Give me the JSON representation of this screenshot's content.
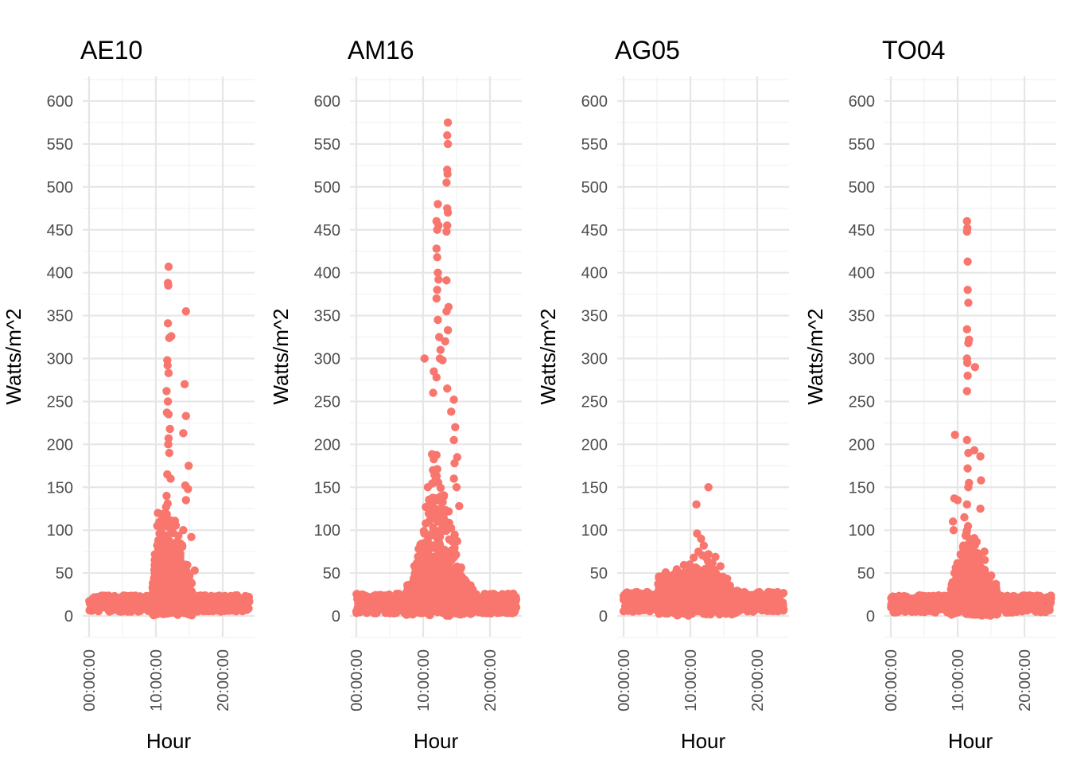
{
  "chart_data": {
    "type": "scatter",
    "layout": "facets-1x4",
    "point_color": "#F8766D",
    "x_axis": {
      "label": "Hour",
      "range_hours": [
        0,
        24
      ],
      "ticks": [
        {
          "value": 0,
          "label": "00:00:00"
        },
        {
          "value": 10,
          "label": "10:00:00"
        },
        {
          "value": 20,
          "label": "20:00:00"
        }
      ]
    },
    "y_axis": {
      "label": "Watts/m^2",
      "range": [
        -30,
        630
      ],
      "ticks": [
        0,
        50,
        100,
        150,
        200,
        250,
        300,
        350,
        400,
        450,
        500,
        550,
        600
      ]
    },
    "grid": true,
    "panels": [
      {
        "title": "AE10",
        "baseline": {
          "night_low": 5,
          "night_high": 24,
          "day_start": 9.5,
          "day_end": 15.5
        },
        "bulk": [
          {
            "h": 9.5,
            "y": 35
          },
          {
            "h": 10.0,
            "y": 70
          },
          {
            "h": 10.5,
            "y": 110
          },
          {
            "h": 11.0,
            "y": 120
          },
          {
            "h": 11.5,
            "y": 150
          },
          {
            "h": 12.0,
            "y": 130
          },
          {
            "h": 12.5,
            "y": 115
          },
          {
            "h": 13.0,
            "y": 110
          },
          {
            "h": 13.5,
            "y": 90
          },
          {
            "h": 14.0,
            "y": 70
          },
          {
            "h": 14.5,
            "y": 55
          },
          {
            "h": 15.0,
            "y": 40
          },
          {
            "h": 15.5,
            "y": 25
          }
        ],
        "outliers": [
          [
            11.9,
            407
          ],
          [
            11.8,
            388
          ],
          [
            11.85,
            385
          ],
          [
            14.5,
            355
          ],
          [
            11.8,
            341
          ],
          [
            12.3,
            326
          ],
          [
            12.0,
            324
          ],
          [
            11.7,
            298
          ],
          [
            11.75,
            292
          ],
          [
            11.9,
            283
          ],
          [
            14.3,
            270
          ],
          [
            11.6,
            262
          ],
          [
            11.8,
            250
          ],
          [
            11.65,
            237
          ],
          [
            11.9,
            235
          ],
          [
            14.5,
            233
          ],
          [
            14.1,
            213
          ],
          [
            12.1,
            218
          ],
          [
            11.9,
            207
          ],
          [
            11.85,
            200
          ],
          [
            12.0,
            190
          ],
          [
            14.9,
            175
          ],
          [
            11.7,
            165
          ],
          [
            12.2,
            160
          ],
          [
            14.4,
            152
          ],
          [
            14.8,
            148
          ],
          [
            11.6,
            140
          ],
          [
            14.5,
            135
          ],
          [
            10.3,
            120
          ],
          [
            10.2,
            105
          ],
          [
            14.1,
            100
          ],
          [
            15.3,
            92
          ],
          [
            15.8,
            53
          ],
          [
            16.3,
            20
          ]
        ]
      },
      {
        "title": "AM16",
        "baseline": {
          "night_low": 3,
          "night_high": 26,
          "day_start": 7.5,
          "day_end": 17.5
        },
        "bulk": [
          {
            "h": 7.5,
            "y": 30
          },
          {
            "h": 8.0,
            "y": 35
          },
          {
            "h": 8.5,
            "y": 50
          },
          {
            "h": 9.0,
            "y": 70
          },
          {
            "h": 9.5,
            "y": 90
          },
          {
            "h": 10.0,
            "y": 105
          },
          {
            "h": 10.5,
            "y": 140
          },
          {
            "h": 11.0,
            "y": 170
          },
          {
            "h": 11.5,
            "y": 200
          },
          {
            "h": 12.0,
            "y": 210
          },
          {
            "h": 12.5,
            "y": 200
          },
          {
            "h": 13.0,
            "y": 180
          },
          {
            "h": 13.5,
            "y": 150
          },
          {
            "h": 14.0,
            "y": 130
          },
          {
            "h": 14.5,
            "y": 110
          },
          {
            "h": 15.0,
            "y": 90
          },
          {
            "h": 15.5,
            "y": 70
          },
          {
            "h": 16.0,
            "y": 50
          },
          {
            "h": 16.5,
            "y": 35
          },
          {
            "h": 17.0,
            "y": 25
          },
          {
            "h": 17.5,
            "y": 20
          }
        ],
        "outliers": [
          [
            13.7,
            575
          ],
          [
            13.6,
            560
          ],
          [
            13.7,
            550
          ],
          [
            13.6,
            520
          ],
          [
            13.65,
            515
          ],
          [
            13.5,
            505
          ],
          [
            12.2,
            480
          ],
          [
            13.6,
            475
          ],
          [
            13.7,
            470
          ],
          [
            12.0,
            460
          ],
          [
            12.3,
            455
          ],
          [
            13.6,
            455
          ],
          [
            12.1,
            450
          ],
          [
            13.5,
            448
          ],
          [
            12.0,
            428
          ],
          [
            12.1,
            418
          ],
          [
            12.2,
            400
          ],
          [
            12.3,
            392
          ],
          [
            13.5,
            391
          ],
          [
            12.1,
            380
          ],
          [
            12.0,
            370
          ],
          [
            13.8,
            360
          ],
          [
            13.5,
            355
          ],
          [
            12.2,
            345
          ],
          [
            13.7,
            333
          ],
          [
            12.4,
            325
          ],
          [
            13.3,
            320
          ],
          [
            12.6,
            310
          ],
          [
            10.2,
            300
          ],
          [
            12.5,
            300
          ],
          [
            12.9,
            298
          ],
          [
            11.6,
            285
          ],
          [
            12.0,
            278
          ],
          [
            13.6,
            265
          ],
          [
            11.5,
            260
          ],
          [
            14.6,
            252
          ],
          [
            14.2,
            238
          ],
          [
            14.8,
            220
          ],
          [
            14.6,
            205
          ],
          [
            15.1,
            185
          ],
          [
            14.7,
            178
          ],
          [
            14.6,
            160
          ],
          [
            15.0,
            150
          ],
          [
            10.7,
            150
          ],
          [
            15.4,
            128
          ],
          [
            11.0,
            125
          ]
        ]
      },
      {
        "title": "AG05",
        "baseline": {
          "night_low": 5,
          "night_high": 28,
          "day_start": 5.0,
          "day_end": 17.0
        },
        "bulk": [
          {
            "h": 5.0,
            "y": 33
          },
          {
            "h": 5.5,
            "y": 44
          },
          {
            "h": 6.0,
            "y": 46
          },
          {
            "h": 6.5,
            "y": 40
          },
          {
            "h": 7.0,
            "y": 38
          },
          {
            "h": 7.5,
            "y": 44
          },
          {
            "h": 8.0,
            "y": 46
          },
          {
            "h": 8.5,
            "y": 44
          },
          {
            "h": 9.0,
            "y": 48
          },
          {
            "h": 9.5,
            "y": 48
          },
          {
            "h": 10.0,
            "y": 50
          },
          {
            "h": 10.5,
            "y": 52
          },
          {
            "h": 11.0,
            "y": 62
          },
          {
            "h": 11.5,
            "y": 68
          },
          {
            "h": 12.0,
            "y": 66
          },
          {
            "h": 12.5,
            "y": 66
          },
          {
            "h": 13.0,
            "y": 62
          },
          {
            "h": 13.5,
            "y": 60
          },
          {
            "h": 14.0,
            "y": 58
          },
          {
            "h": 14.5,
            "y": 54
          },
          {
            "h": 15.0,
            "y": 46
          },
          {
            "h": 15.5,
            "y": 35
          },
          {
            "h": 16.0,
            "y": 28
          },
          {
            "h": 16.5,
            "y": 24
          },
          {
            "h": 17.0,
            "y": 22
          }
        ],
        "outliers": [
          [
            12.7,
            150
          ],
          [
            10.9,
            130
          ],
          [
            11.0,
            96
          ],
          [
            11.6,
            90
          ],
          [
            12.0,
            82
          ],
          [
            12.7,
            72
          ],
          [
            10.5,
            68
          ],
          [
            11.2,
            75
          ],
          [
            9.9,
            60
          ],
          [
            13.3,
            62
          ],
          [
            10.3,
            55
          ],
          [
            8.4,
            50
          ],
          [
            14.5,
            58
          ],
          [
            6.0,
            47
          ],
          [
            5.3,
            46
          ]
        ]
      },
      {
        "title": "TO04",
        "baseline": {
          "night_low": 4,
          "night_high": 24,
          "day_start": 9.0,
          "day_end": 16.0
        },
        "bulk": [
          {
            "h": 9.0,
            "y": 30
          },
          {
            "h": 9.5,
            "y": 45
          },
          {
            "h": 10.0,
            "y": 60
          },
          {
            "h": 10.5,
            "y": 80
          },
          {
            "h": 11.0,
            "y": 95
          },
          {
            "h": 11.5,
            "y": 110
          },
          {
            "h": 12.0,
            "y": 100
          },
          {
            "h": 12.5,
            "y": 90
          },
          {
            "h": 13.0,
            "y": 80
          },
          {
            "h": 13.5,
            "y": 70
          },
          {
            "h": 14.0,
            "y": 55
          },
          {
            "h": 14.5,
            "y": 45
          },
          {
            "h": 15.0,
            "y": 35
          },
          {
            "h": 15.5,
            "y": 28
          },
          {
            "h": 16.0,
            "y": 22
          }
        ],
        "outliers": [
          [
            11.4,
            460
          ],
          [
            11.45,
            452
          ],
          [
            11.4,
            448
          ],
          [
            11.5,
            413
          ],
          [
            11.5,
            380
          ],
          [
            11.6,
            365
          ],
          [
            11.4,
            334
          ],
          [
            11.7,
            322
          ],
          [
            11.6,
            318
          ],
          [
            11.4,
            300
          ],
          [
            11.45,
            295
          ],
          [
            12.6,
            290
          ],
          [
            11.5,
            280
          ],
          [
            11.4,
            262
          ],
          [
            9.6,
            211
          ],
          [
            11.4,
            205
          ],
          [
            12.5,
            193
          ],
          [
            11.6,
            190
          ],
          [
            13.4,
            186
          ],
          [
            11.5,
            172
          ],
          [
            13.5,
            158
          ],
          [
            11.7,
            155
          ],
          [
            11.6,
            150
          ],
          [
            9.5,
            137
          ],
          [
            10.0,
            135
          ],
          [
            11.4,
            130
          ],
          [
            13.4,
            125
          ],
          [
            11.0,
            115
          ],
          [
            9.3,
            110
          ],
          [
            9.4,
            100
          ],
          [
            14.0,
            75
          ]
        ]
      }
    ]
  }
}
